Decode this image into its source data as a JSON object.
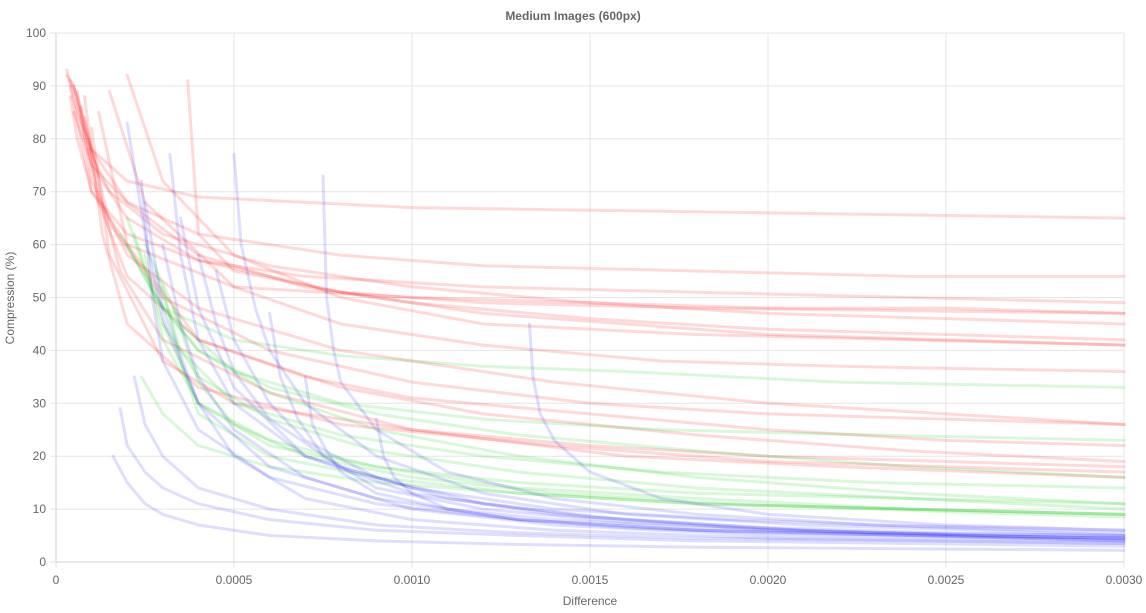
{
  "chart_data": {
    "type": "line",
    "title": "Medium Images (600px)",
    "xlabel": "Difference",
    "ylabel": "Compression (%)",
    "xlim": [
      0,
      0.003
    ],
    "ylim": [
      0,
      100
    ],
    "x_ticks": [
      "0",
      "0.0005",
      "0.0010",
      "0.0015",
      "0.0020",
      "0.0025",
      "0.0030"
    ],
    "y_ticks": [
      "0",
      "10",
      "20",
      "30",
      "40",
      "50",
      "60",
      "70",
      "80",
      "90",
      "100"
    ],
    "grid": true,
    "legend": "none",
    "colors": {
      "red": "rgba(255,0,0,0.15)",
      "green": "rgba(0,200,0,0.15)",
      "blue": "rgba(0,0,255,0.13)",
      "grid": "#e5e5e5",
      "text": "#666666"
    },
    "series": [
      {
        "group": "red",
        "x": [
          3e-05,
          5e-05,
          8e-05,
          0.00015,
          0.0003,
          0.0006,
          0.001,
          0.0015,
          0.002,
          0.0025,
          0.003
        ],
        "y": [
          92,
          90,
          80,
          70,
          62,
          56,
          52,
          49,
          47,
          46,
          45
        ]
      },
      {
        "group": "red",
        "x": [
          4e-05,
          6e-05,
          0.0001,
          0.0002,
          0.0004,
          0.0007,
          0.001,
          0.0015,
          0.002,
          0.0025,
          0.003
        ],
        "y": [
          91,
          88,
          78,
          68,
          58,
          52,
          49,
          46,
          44,
          43,
          42
        ]
      },
      {
        "group": "red",
        "x": [
          5e-05,
          8e-05,
          0.00012,
          0.0002,
          0.0004,
          0.0008,
          0.0012,
          0.0016,
          0.002,
          0.0025,
          0.003
        ],
        "y": [
          90,
          82,
          73,
          65,
          57,
          51,
          47,
          45,
          43,
          42,
          41
        ]
      },
      {
        "group": "red",
        "x": [
          4e-05,
          6e-05,
          0.0001,
          0.0002,
          0.0005,
          0.001,
          0.0015,
          0.002,
          0.0025,
          0.003
        ],
        "y": [
          88,
          80,
          70,
          60,
          52,
          50,
          49,
          48,
          48,
          47
        ]
      },
      {
        "group": "red",
        "x": [
          5e-05,
          0.0001,
          0.0002,
          0.0004,
          0.0008,
          0.0012,
          0.0018,
          0.0024,
          0.003
        ],
        "y": [
          85,
          75,
          68,
          62,
          58,
          56,
          55,
          54,
          54
        ]
      },
      {
        "group": "red",
        "x": [
          3e-05,
          6e-05,
          0.0001,
          0.0002,
          0.0004,
          0.001,
          0.0015,
          0.002,
          0.0025,
          0.003
        ],
        "y": [
          93,
          85,
          78,
          72,
          69,
          67,
          66.5,
          66,
          65.5,
          65
        ]
      },
      {
        "group": "red",
        "x": [
          6e-05,
          0.0001,
          0.0002,
          0.0004,
          0.0008,
          0.0014,
          0.002,
          0.0025,
          0.003
        ],
        "y": [
          89,
          72,
          58,
          48,
          40,
          34,
          30,
          28,
          26
        ]
      },
      {
        "group": "red",
        "x": [
          7e-05,
          0.00012,
          0.0002,
          0.0004,
          0.0008,
          0.0012,
          0.0018,
          0.0024,
          0.003
        ],
        "y": [
          86,
          68,
          54,
          42,
          33,
          28,
          24,
          21,
          19
        ]
      },
      {
        "group": "red",
        "x": [
          8e-05,
          0.00013,
          0.0002,
          0.0004,
          0.0008,
          0.0014,
          0.002,
          0.0025,
          0.003
        ],
        "y": [
          88,
          62,
          45,
          33,
          26,
          22,
          19,
          18,
          17
        ]
      },
      {
        "group": "red",
        "x": [
          0.0001,
          0.00015,
          0.0003,
          0.0005,
          0.001,
          0.0015,
          0.002,
          0.0025,
          0.003
        ],
        "y": [
          82,
          58,
          38,
          30,
          25,
          22,
          20,
          19,
          18
        ]
      },
      {
        "group": "red",
        "x": [
          0.00012,
          0.0002,
          0.0004,
          0.0007,
          0.001,
          0.0015,
          0.002,
          0.0025,
          0.003
        ],
        "y": [
          85,
          60,
          42,
          35,
          31,
          28,
          25,
          23,
          22
        ]
      },
      {
        "group": "red",
        "x": [
          0.00015,
          0.00025,
          0.0005,
          0.0008,
          0.0012,
          0.0017,
          0.0022,
          0.003
        ],
        "y": [
          89,
          68,
          52,
          45,
          41,
          38,
          37,
          36
        ]
      },
      {
        "group": "red",
        "x": [
          0.0002,
          0.0003,
          0.0005,
          0.0008,
          0.0012,
          0.0018,
          0.0024,
          0.003
        ],
        "y": [
          92,
          72,
          58,
          50,
          45,
          43,
          42,
          41
        ]
      },
      {
        "group": "red",
        "x": [
          0.00037,
          0.0004,
          0.0005,
          0.0008,
          0.0012,
          0.0018,
          0.0024,
          0.003
        ],
        "y": [
          91,
          62,
          55,
          51,
          49,
          48,
          47.5,
          47
        ]
      },
      {
        "group": "red",
        "x": [
          8e-05,
          0.00015,
          0.0003,
          0.0006,
          0.001,
          0.0015,
          0.002,
          0.0025,
          0.003
        ],
        "y": [
          84,
          64,
          50,
          40,
          34,
          30,
          28,
          27,
          26
        ]
      },
      {
        "group": "red",
        "x": [
          9e-05,
          0.00018,
          0.0003,
          0.0006,
          0.001,
          0.0016,
          0.0022,
          0.003
        ],
        "y": [
          78,
          55,
          42,
          32,
          25,
          20,
          18,
          16
        ]
      },
      {
        "group": "red",
        "x": [
          4e-05,
          0.0001,
          0.0002,
          0.0004,
          0.0007,
          0.0012,
          0.0018,
          0.0024,
          0.003
        ],
        "y": [
          90,
          70,
          62,
          57,
          54,
          52,
          51,
          50,
          49
        ]
      },
      {
        "group": "green",
        "x": [
          0.0002,
          0.00025,
          0.0003,
          0.0004,
          0.0006,
          0.0009,
          0.0013,
          0.0018,
          0.0024,
          0.003
        ],
        "y": [
          65,
          55,
          48,
          40,
          32,
          25,
          20,
          16,
          13,
          11
        ]
      },
      {
        "group": "green",
        "x": [
          0.00022,
          0.0003,
          0.0004,
          0.0006,
          0.0009,
          0.0013,
          0.0018,
          0.0024,
          0.003
        ],
        "y": [
          62,
          45,
          35,
          27,
          21,
          17,
          14,
          12,
          10
        ]
      },
      {
        "group": "green",
        "x": [
          0.00025,
          0.0003,
          0.0004,
          0.0006,
          0.0009,
          0.0013,
          0.0018,
          0.0024,
          0.003
        ],
        "y": [
          58,
          42,
          30,
          23,
          18,
          14,
          12,
          10,
          9
        ]
      },
      {
        "group": "green",
        "x": [
          0.0002,
          0.00028,
          0.0004,
          0.0006,
          0.0009,
          0.0013,
          0.0018,
          0.0024,
          0.003
        ],
        "y": [
          60,
          50,
          40,
          33,
          28,
          24,
          21,
          18,
          16
        ]
      },
      {
        "group": "green",
        "x": [
          0.0003,
          0.00035,
          0.0004,
          0.0006,
          0.0009,
          0.0013,
          0.0018,
          0.0024,
          0.003
        ],
        "y": [
          52,
          38,
          28,
          20,
          16,
          13,
          11,
          10,
          9
        ]
      },
      {
        "group": "green",
        "x": [
          0.00018,
          0.0003,
          0.0005,
          0.0008,
          0.0012,
          0.0016,
          0.0022,
          0.003
        ],
        "y": [
          62,
          48,
          42,
          39,
          37,
          36,
          34,
          33
        ]
      },
      {
        "group": "green",
        "x": [
          0.00024,
          0.0003,
          0.0004,
          0.0006,
          0.0009,
          0.0013,
          0.0018,
          0.0024,
          0.003
        ],
        "y": [
          35,
          28,
          22,
          18,
          15,
          13,
          11,
          10,
          9
        ]
      },
      {
        "group": "green",
        "x": [
          0.00033,
          0.0004,
          0.0005,
          0.0007,
          0.001,
          0.0014,
          0.0019,
          0.0025,
          0.003
        ],
        "y": [
          48,
          34,
          26,
          20,
          16,
          13,
          11,
          9.5,
          8.5
        ]
      },
      {
        "group": "green",
        "x": [
          0.00028,
          0.00035,
          0.0005,
          0.0008,
          0.0012,
          0.0017,
          0.0023,
          0.003
        ],
        "y": [
          55,
          40,
          30,
          24,
          20,
          17,
          15,
          14
        ]
      },
      {
        "group": "green",
        "x": [
          0.0003,
          0.0004,
          0.0006,
          0.0009,
          0.0013,
          0.0018,
          0.0024,
          0.003
        ],
        "y": [
          45,
          30,
          22,
          18,
          15,
          13,
          12,
          11
        ]
      },
      {
        "group": "green",
        "x": [
          0.00025,
          0.00035,
          0.0005,
          0.0008,
          0.0012,
          0.0017,
          0.0023,
          0.003
        ],
        "y": [
          60,
          45,
          36,
          30,
          27,
          25,
          24,
          23
        ]
      },
      {
        "group": "blue",
        "x": [
          0.00018,
          0.0002,
          0.00025,
          0.0003,
          0.0004,
          0.0006,
          0.0009,
          0.0013,
          0.0018,
          0.0024,
          0.003
        ],
        "y": [
          29,
          22,
          17,
          14,
          11,
          8,
          6,
          5,
          4,
          3.5,
          3
        ]
      },
      {
        "group": "blue",
        "x": [
          0.00022,
          0.00025,
          0.0003,
          0.0004,
          0.0006,
          0.0009,
          0.0013,
          0.0018,
          0.0024,
          0.003
        ],
        "y": [
          35,
          26,
          20,
          14,
          10,
          7,
          5.5,
          4.5,
          4,
          3.5
        ]
      },
      {
        "group": "blue",
        "x": [
          0.00024,
          0.00027,
          0.0003,
          0.0004,
          0.0006,
          0.0009,
          0.0013,
          0.0018,
          0.0024,
          0.003
        ],
        "y": [
          72,
          50,
          38,
          25,
          16,
          11,
          8,
          6,
          5,
          4
        ]
      },
      {
        "group": "blue",
        "x": [
          0.00032,
          0.00035,
          0.0004,
          0.0005,
          0.0007,
          0.001,
          0.0014,
          0.0019,
          0.0025,
          0.003
        ],
        "y": [
          77,
          58,
          42,
          30,
          20,
          14,
          10,
          8,
          6.5,
          5.5
        ]
      },
      {
        "group": "blue",
        "x": [
          0.0005,
          0.00052,
          0.00056,
          0.0006,
          0.0007,
          0.0009,
          0.0012,
          0.0016,
          0.0021,
          0.0026,
          0.003
        ],
        "y": [
          77,
          60,
          48,
          40,
          30,
          20,
          13,
          9,
          7,
          6,
          5
        ]
      },
      {
        "group": "blue",
        "x": [
          0.00075,
          0.00076,
          0.00078,
          0.0008,
          0.0009,
          0.0011,
          0.0014,
          0.0018,
          0.0023,
          0.003
        ],
        "y": [
          73,
          50,
          40,
          34,
          25,
          17,
          12,
          9,
          7,
          6
        ]
      },
      {
        "group": "blue",
        "x": [
          0.00133,
          0.00134,
          0.00136,
          0.0014,
          0.0015,
          0.0017,
          0.002,
          0.0025,
          0.003
        ],
        "y": [
          45,
          35,
          28,
          23,
          17,
          12,
          9,
          7,
          6
        ]
      },
      {
        "group": "blue",
        "x": [
          0.00025,
          0.0003,
          0.0004,
          0.0005,
          0.0007,
          0.001,
          0.0014,
          0.002,
          0.0025,
          0.003
        ],
        "y": [
          68,
          48,
          30,
          20,
          12,
          8,
          6,
          4.5,
          4,
          3.5
        ]
      },
      {
        "group": "blue",
        "x": [
          0.0003,
          0.00035,
          0.0004,
          0.0005,
          0.0007,
          0.001,
          0.0014,
          0.002,
          0.0025,
          0.003
        ],
        "y": [
          60,
          45,
          35,
          25,
          16,
          10,
          7,
          5,
          4.5,
          4
        ]
      },
      {
        "group": "blue",
        "x": [
          0.00035,
          0.0004,
          0.0005,
          0.0007,
          0.001,
          0.0014,
          0.002,
          0.0025,
          0.003
        ],
        "y": [
          65,
          48,
          33,
          20,
          13,
          9,
          6,
          5,
          4.5
        ]
      },
      {
        "group": "blue",
        "x": [
          0.0004,
          0.00045,
          0.0005,
          0.0006,
          0.0008,
          0.0011,
          0.0015,
          0.002,
          0.0025,
          0.003
        ],
        "y": [
          58,
          45,
          36,
          27,
          18,
          12,
          8.5,
          6.5,
          5.5,
          5
        ]
      },
      {
        "group": "blue",
        "x": [
          0.00045,
          0.0005,
          0.0006,
          0.0007,
          0.0009,
          0.0012,
          0.0016,
          0.0021,
          0.0026,
          0.003
        ],
        "y": [
          55,
          42,
          30,
          23,
          16,
          11,
          8,
          6,
          5,
          4.5
        ]
      },
      {
        "group": "blue",
        "x": [
          0.0002,
          0.00025,
          0.0003,
          0.0004,
          0.0006,
          0.0009,
          0.0013,
          0.0018,
          0.0024,
          0.003
        ],
        "y": [
          83,
          62,
          46,
          30,
          18,
          12,
          8,
          6,
          5,
          4
        ]
      },
      {
        "group": "blue",
        "x": [
          0.0006,
          0.00063,
          0.00068,
          0.00075,
          0.0009,
          0.0012,
          0.0016,
          0.0021,
          0.0026,
          0.003
        ],
        "y": [
          47,
          35,
          27,
          20,
          14,
          10,
          7.5,
          6,
          5,
          4.5
        ]
      },
      {
        "group": "blue",
        "x": [
          0.0007,
          0.00072,
          0.00076,
          0.0008,
          0.0009,
          0.0011,
          0.0014,
          0.0018,
          0.0023,
          0.003
        ],
        "y": [
          35,
          26,
          21,
          17,
          13,
          10,
          8,
          6.5,
          5.5,
          5
        ]
      },
      {
        "group": "blue",
        "x": [
          0.0009,
          0.00092,
          0.00095,
          0.001,
          0.0011,
          0.0013,
          0.0016,
          0.002,
          0.0025,
          0.003
        ],
        "y": [
          27,
          20,
          16,
          13,
          10,
          8,
          6.5,
          5.5,
          5,
          4.5
        ]
      },
      {
        "group": "blue",
        "x": [
          0.00016,
          0.0002,
          0.00025,
          0.0003,
          0.0004,
          0.0006,
          0.0009,
          0.0013,
          0.0018,
          0.0024,
          0.003
        ],
        "y": [
          20,
          15,
          11,
          9,
          7,
          5,
          4,
          3.3,
          2.8,
          2.5,
          2.2
        ]
      }
    ]
  }
}
